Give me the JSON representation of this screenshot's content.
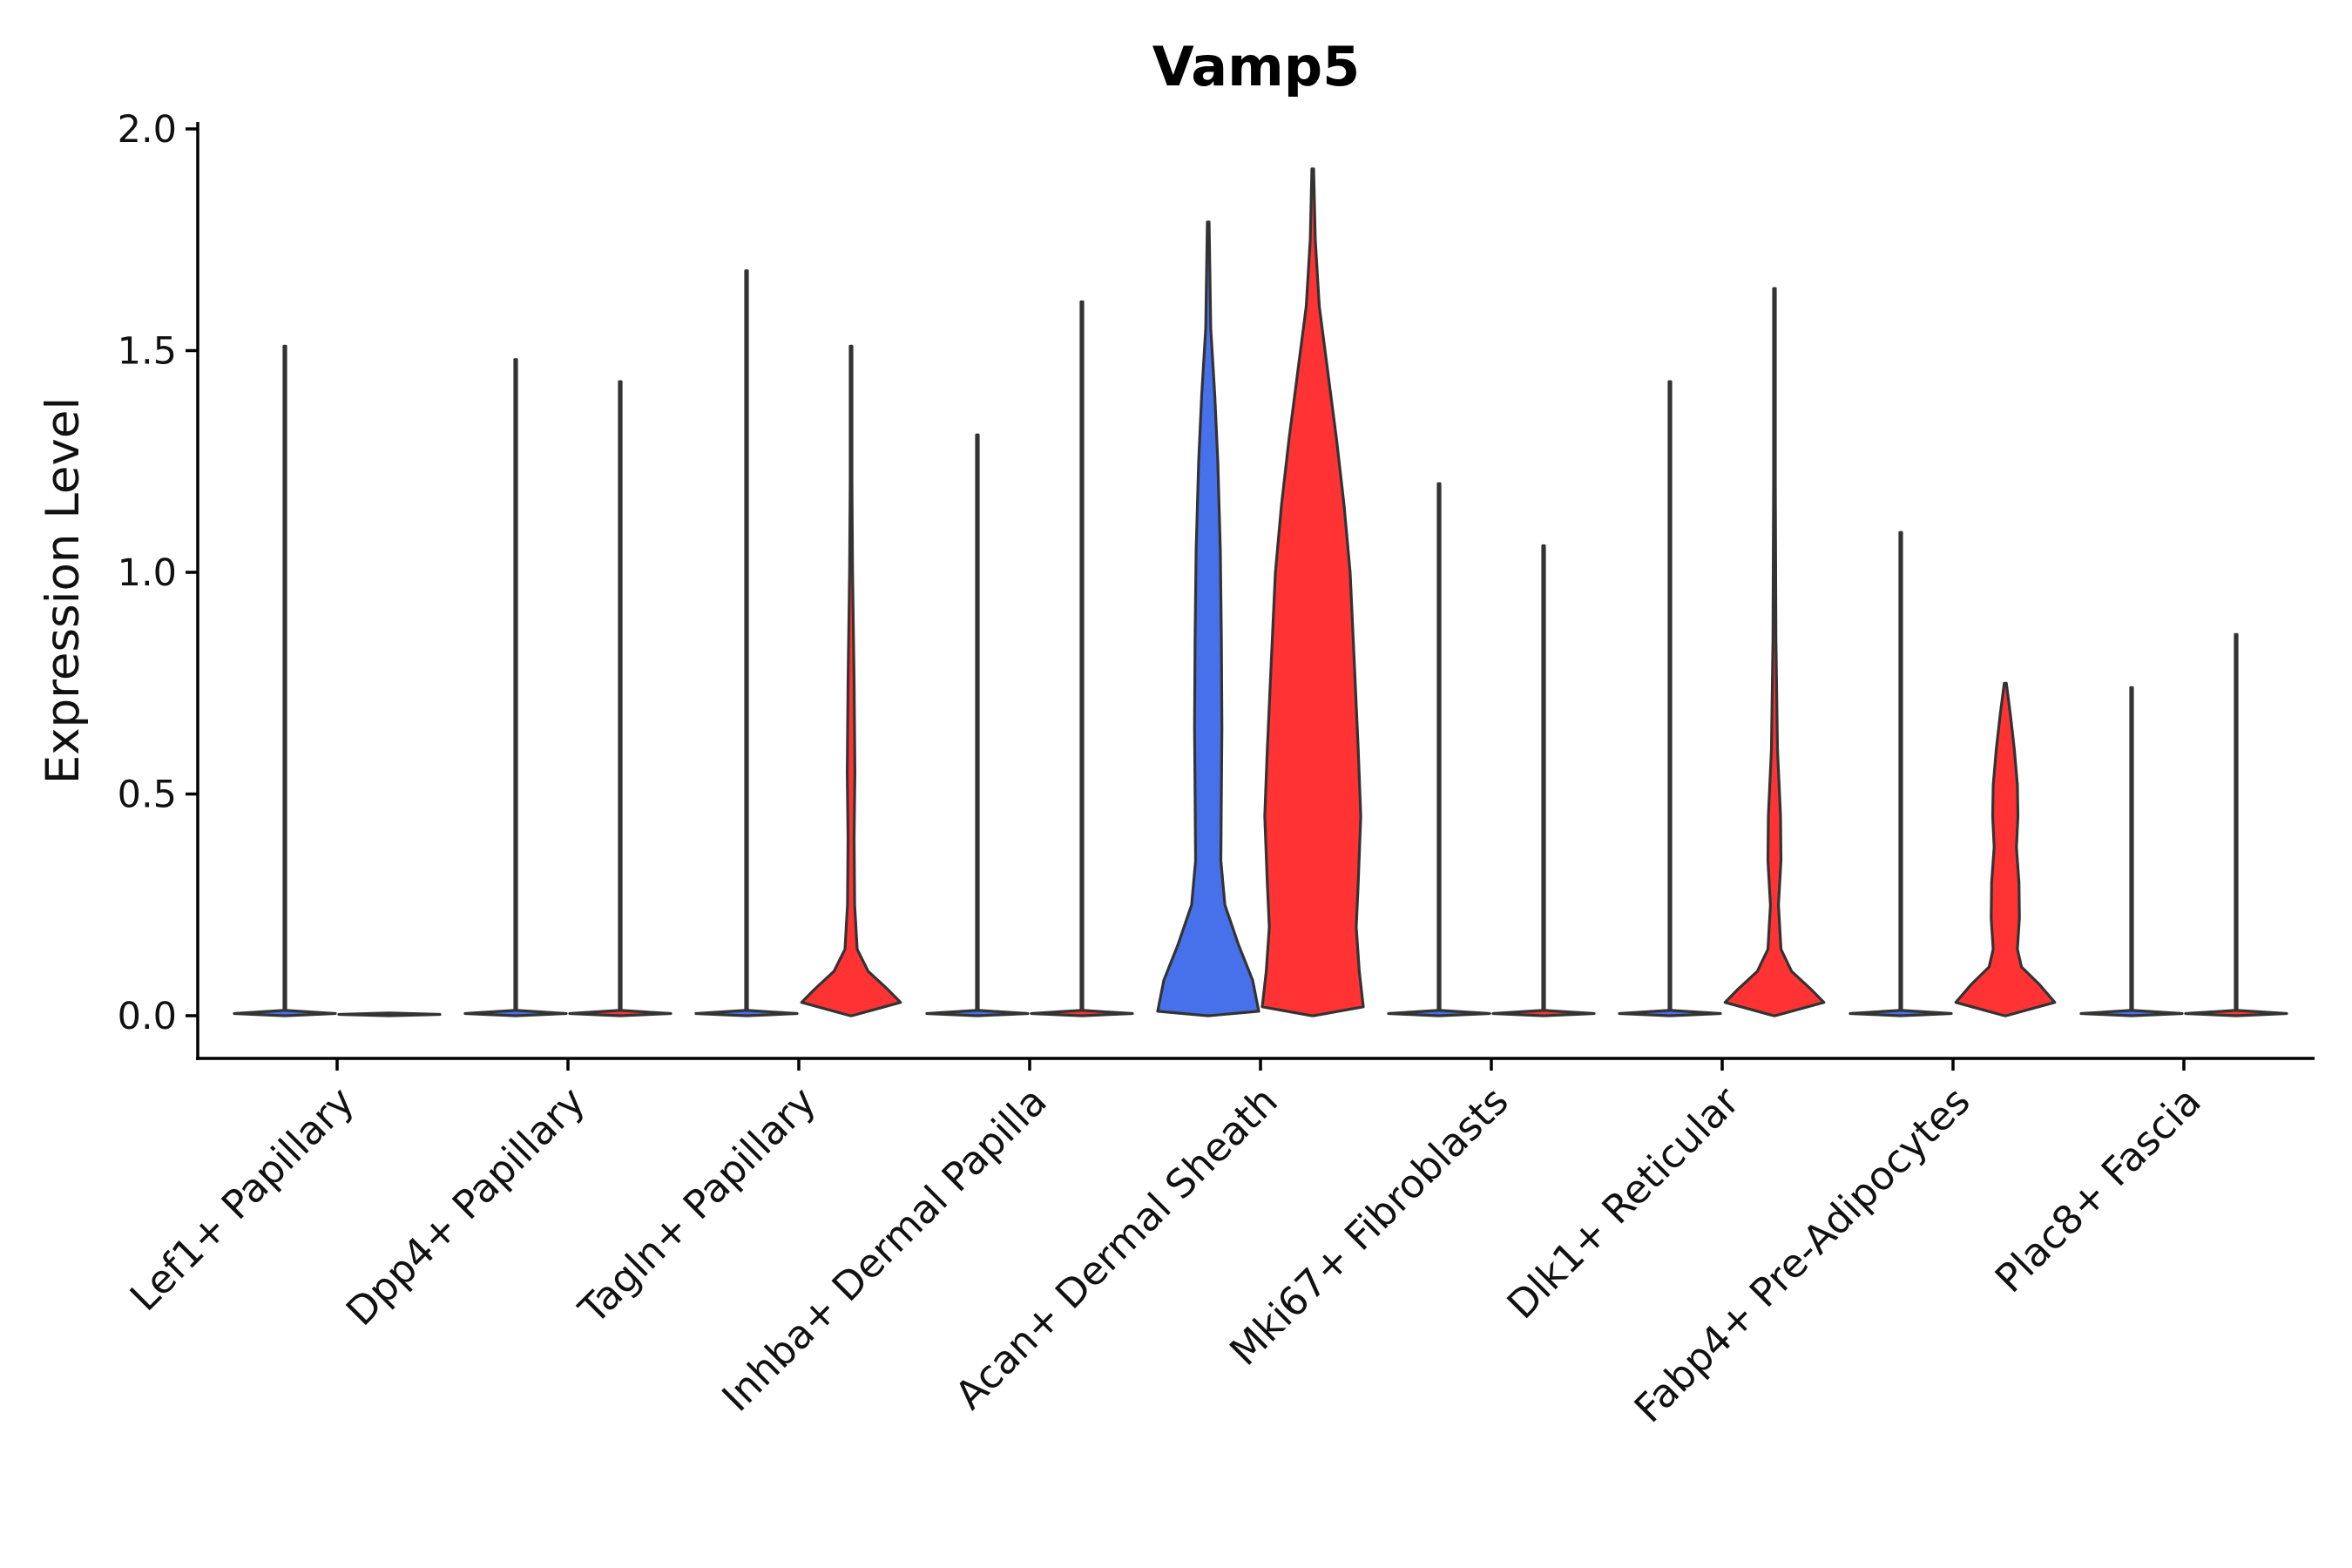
{
  "chart_data": {
    "type": "violin",
    "title": "Vamp5",
    "xlabel": "",
    "ylabel": "Expression Level",
    "ylim": [
      -0.1,
      2.0
    ],
    "yticks": [
      0.0,
      0.5,
      1.0,
      1.5,
      2.0
    ],
    "ytick_labels": [
      "0.0",
      "0.5",
      "1.0",
      "1.5",
      "2.0"
    ],
    "categories": [
      "Lef1+ Papillary",
      "Dpp4+ Papillary",
      "Tagln+ Papillary",
      "Inhba+ Dermal Papilla",
      "Acan+ Dermal Sheath",
      "Mki67+ Fibroblasts",
      "Dlk1+ Reticular",
      "Fabp4+ Pre-Adipocytes",
      "Plac8+ Fascia"
    ],
    "groups": [
      {
        "name": "group-1",
        "color": "#4671EA"
      },
      {
        "name": "group-2",
        "color": "#FF3333"
      }
    ],
    "violins": [
      {
        "category": 0,
        "group": 0,
        "max": 1.51,
        "profile": [
          [
            0,
            0.0
          ],
          [
            0.005,
            1.0
          ],
          [
            0.012,
            0.012
          ],
          [
            1.51,
            0.01
          ]
        ]
      },
      {
        "category": 0,
        "group": 1,
        "max": 0.0,
        "profile": [
          [
            0,
            0.0
          ],
          [
            0.003,
            1.0
          ],
          [
            0.006,
            0.0
          ]
        ]
      },
      {
        "category": 1,
        "group": 0,
        "max": 1.48,
        "profile": [
          [
            0,
            0.0
          ],
          [
            0.005,
            1.0
          ],
          [
            0.012,
            0.012
          ],
          [
            1.48,
            0.01
          ]
        ]
      },
      {
        "category": 1,
        "group": 1,
        "max": 1.43,
        "profile": [
          [
            0,
            0.0
          ],
          [
            0.005,
            1.0
          ],
          [
            0.012,
            0.012
          ],
          [
            1.43,
            0.01
          ]
        ]
      },
      {
        "category": 2,
        "group": 0,
        "max": 1.68,
        "profile": [
          [
            0,
            0.0
          ],
          [
            0.005,
            1.0
          ],
          [
            0.012,
            0.012
          ],
          [
            1.68,
            0.01
          ]
        ]
      },
      {
        "category": 2,
        "group": 1,
        "max": 1.51,
        "profile": [
          [
            0,
            0.0
          ],
          [
            0.03,
            0.98
          ],
          [
            0.06,
            0.72
          ],
          [
            0.1,
            0.34
          ],
          [
            0.15,
            0.12
          ],
          [
            0.25,
            0.07
          ],
          [
            0.4,
            0.06
          ],
          [
            0.55,
            0.075
          ],
          [
            0.75,
            0.06
          ],
          [
            1.0,
            0.03
          ],
          [
            1.2,
            0.012
          ],
          [
            1.51,
            0.01
          ]
        ]
      },
      {
        "category": 3,
        "group": 0,
        "max": 1.31,
        "profile": [
          [
            0,
            0.0
          ],
          [
            0.005,
            1.0
          ],
          [
            0.012,
            0.012
          ],
          [
            1.31,
            0.01
          ]
        ]
      },
      {
        "category": 3,
        "group": 1,
        "max": 1.61,
        "profile": [
          [
            0,
            0.0
          ],
          [
            0.005,
            1.0
          ],
          [
            0.012,
            0.012
          ],
          [
            1.61,
            0.01
          ]
        ]
      },
      {
        "category": 4,
        "group": 0,
        "max": 1.79,
        "profile": [
          [
            0,
            0.0
          ],
          [
            0.01,
            1.0
          ],
          [
            0.08,
            0.88
          ],
          [
            0.16,
            0.6
          ],
          [
            0.25,
            0.33
          ],
          [
            0.35,
            0.25
          ],
          [
            0.5,
            0.26
          ],
          [
            0.65,
            0.27
          ],
          [
            0.85,
            0.26
          ],
          [
            1.05,
            0.24
          ],
          [
            1.25,
            0.19
          ],
          [
            1.4,
            0.13
          ],
          [
            1.55,
            0.05
          ],
          [
            1.79,
            0.01
          ]
        ]
      },
      {
        "category": 4,
        "group": 1,
        "max": 1.91,
        "profile": [
          [
            0,
            0.0
          ],
          [
            0.02,
            1.0
          ],
          [
            0.1,
            0.92
          ],
          [
            0.2,
            0.86
          ],
          [
            0.3,
            0.9
          ],
          [
            0.45,
            0.95
          ],
          [
            0.6,
            0.9
          ],
          [
            0.8,
            0.82
          ],
          [
            1.0,
            0.74
          ],
          [
            1.15,
            0.62
          ],
          [
            1.3,
            0.47
          ],
          [
            1.45,
            0.3
          ],
          [
            1.6,
            0.13
          ],
          [
            1.75,
            0.05
          ],
          [
            1.91,
            0.01
          ]
        ]
      },
      {
        "category": 5,
        "group": 0,
        "max": 1.2,
        "profile": [
          [
            0,
            0.0
          ],
          [
            0.005,
            1.0
          ],
          [
            0.012,
            0.012
          ],
          [
            1.2,
            0.01
          ]
        ]
      },
      {
        "category": 5,
        "group": 1,
        "max": 1.06,
        "profile": [
          [
            0,
            0.0
          ],
          [
            0.005,
            1.0
          ],
          [
            0.012,
            0.012
          ],
          [
            1.06,
            0.01
          ]
        ]
      },
      {
        "category": 6,
        "group": 0,
        "max": 1.43,
        "profile": [
          [
            0,
            0.0
          ],
          [
            0.005,
            1.0
          ],
          [
            0.012,
            0.012
          ],
          [
            1.43,
            0.01
          ]
        ]
      },
      {
        "category": 6,
        "group": 1,
        "max": 1.64,
        "profile": [
          [
            0,
            0.0
          ],
          [
            0.03,
            0.98
          ],
          [
            0.06,
            0.72
          ],
          [
            0.1,
            0.34
          ],
          [
            0.15,
            0.13
          ],
          [
            0.25,
            0.08
          ],
          [
            0.35,
            0.13
          ],
          [
            0.45,
            0.12
          ],
          [
            0.6,
            0.06
          ],
          [
            0.85,
            0.03
          ],
          [
            1.2,
            0.015
          ],
          [
            1.64,
            0.01
          ]
        ]
      },
      {
        "category": 7,
        "group": 0,
        "max": 1.09,
        "profile": [
          [
            0,
            0.0
          ],
          [
            0.005,
            1.0
          ],
          [
            0.012,
            0.012
          ],
          [
            1.09,
            0.01
          ]
        ]
      },
      {
        "category": 7,
        "group": 1,
        "max": 0.75,
        "profile": [
          [
            0,
            0.0
          ],
          [
            0.03,
            0.98
          ],
          [
            0.07,
            0.68
          ],
          [
            0.11,
            0.32
          ],
          [
            0.15,
            0.24
          ],
          [
            0.22,
            0.28
          ],
          [
            0.3,
            0.27
          ],
          [
            0.38,
            0.22
          ],
          [
            0.45,
            0.25
          ],
          [
            0.52,
            0.24
          ],
          [
            0.6,
            0.18
          ],
          [
            0.68,
            0.1
          ],
          [
            0.75,
            0.02
          ]
        ]
      },
      {
        "category": 8,
        "group": 0,
        "max": 0.74,
        "profile": [
          [
            0,
            0.0
          ],
          [
            0.005,
            1.0
          ],
          [
            0.012,
            0.012
          ],
          [
            0.74,
            0.01
          ]
        ]
      },
      {
        "category": 8,
        "group": 1,
        "max": 0.86,
        "profile": [
          [
            0,
            0.0
          ],
          [
            0.005,
            1.0
          ],
          [
            0.012,
            0.012
          ],
          [
            0.86,
            0.01
          ]
        ]
      }
    ]
  }
}
